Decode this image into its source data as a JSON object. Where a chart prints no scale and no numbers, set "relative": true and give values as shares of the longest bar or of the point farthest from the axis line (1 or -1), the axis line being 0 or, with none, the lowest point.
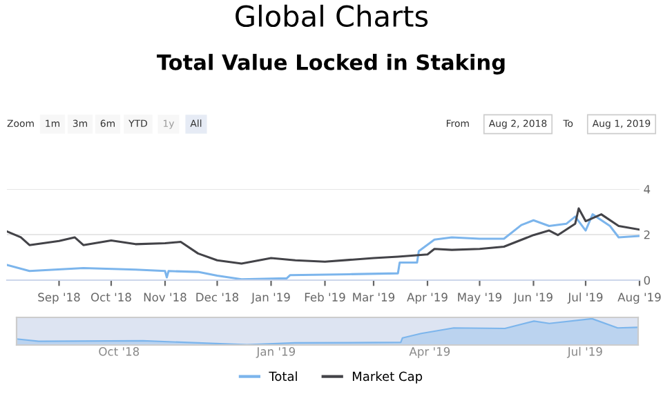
{
  "chart_data": [
    {
      "type": "line",
      "title": "Global Charts",
      "subtitle": "Total Value Locked in Staking",
      "annotations": [
        "Zoom",
        "1m",
        "3m",
        "6m",
        "YTD",
        "1y",
        "All",
        "From",
        "Aug 2, 2018",
        "To",
        "Aug 1, 2019"
      ],
      "series": [
        {
          "name": "Total",
          "color": "#7cb5ec",
          "x": [
            "2018-08-02",
            "2018-08-15",
            "2018-09-15",
            "2018-10-15",
            "2018-11-01",
            "2018-11-02",
            "2018-11-03",
            "2018-11-20",
            "2018-12-01",
            "2018-12-15",
            "2019-01-10",
            "2019-01-12",
            "2019-02-15",
            "2019-03-15",
            "2019-03-16",
            "2019-03-26",
            "2019-03-27",
            "2019-04-05",
            "2019-04-15",
            "2019-05-01",
            "2019-05-15",
            "2019-05-25",
            "2019-06-01",
            "2019-06-10",
            "2019-06-20",
            "2019-06-25",
            "2019-07-01",
            "2019-07-05",
            "2019-07-15",
            "2019-07-20",
            "2019-08-01"
          ],
          "values": [
            0.67,
            0.4,
            0.53,
            0.46,
            0.4,
            0.12,
            0.4,
            0.36,
            0.2,
            0.04,
            0.08,
            0.22,
            0.26,
            0.3,
            0.77,
            0.77,
            1.27,
            1.78,
            1.88,
            1.82,
            1.82,
            2.42,
            2.63,
            2.38,
            2.48,
            2.79,
            2.18,
            2.89,
            2.38,
            1.88,
            1.94
          ]
        },
        {
          "name": "Market Cap",
          "color": "#434348",
          "x": [
            "2018-08-02",
            "2018-08-10",
            "2018-08-15",
            "2018-09-01",
            "2018-09-10",
            "2018-09-15",
            "2018-10-01",
            "2018-10-15",
            "2018-11-01",
            "2018-11-10",
            "2018-11-20",
            "2018-12-01",
            "2018-12-15",
            "2019-01-01",
            "2019-01-15",
            "2019-02-01",
            "2019-02-15",
            "2019-03-01",
            "2019-03-15",
            "2019-04-01",
            "2019-04-05",
            "2019-04-15",
            "2019-05-01",
            "2019-05-15",
            "2019-06-01",
            "2019-06-10",
            "2019-06-15",
            "2019-06-25",
            "2019-06-27",
            "2019-07-01",
            "2019-07-10",
            "2019-07-20",
            "2019-08-01"
          ],
          "values": [
            2.14,
            1.88,
            1.54,
            1.72,
            1.88,
            1.54,
            1.74,
            1.58,
            1.62,
            1.68,
            1.17,
            0.87,
            0.73,
            0.97,
            0.87,
            0.81,
            0.89,
            0.97,
            1.03,
            1.13,
            1.37,
            1.33,
            1.37,
            1.47,
            1.98,
            2.18,
            1.98,
            2.48,
            3.15,
            2.59,
            2.89,
            2.38,
            2.22
          ]
        }
      ],
      "xlim": [
        "2018-08-02",
        "2019-08-01"
      ],
      "xticks": [
        {
          "value": "2018-09-01",
          "label": "Sep '18"
        },
        {
          "value": "2018-10-01",
          "label": "Oct '18"
        },
        {
          "value": "2018-11-01",
          "label": "Nov '18"
        },
        {
          "value": "2018-12-01",
          "label": "Dec '18"
        },
        {
          "value": "2019-01-01",
          "label": "Jan '19"
        },
        {
          "value": "2019-02-01",
          "label": "Feb '19"
        },
        {
          "value": "2019-03-01",
          "label": "Mar '19"
        },
        {
          "value": "2019-04-01",
          "label": "Apr '19"
        },
        {
          "value": "2019-05-01",
          "label": "May '19"
        },
        {
          "value": "2019-06-01",
          "label": "Jun '19"
        },
        {
          "value": "2019-07-01",
          "label": "Jul '19"
        },
        {
          "value": "2019-08-01",
          "label": "Aug '19"
        }
      ],
      "ylim": [
        0,
        4
      ],
      "yticks": [
        0,
        2,
        4
      ],
      "grid": "y",
      "legend": "bottom",
      "marker": "none",
      "line_style": "solid"
    },
    {
      "type": "area",
      "relative": true,
      "series": [
        {
          "color": "#7cb5ec",
          "x": [
            "2018-08-02",
            "2018-08-15",
            "2018-10-15",
            "2018-12-15",
            "2019-01-12",
            "2019-03-15",
            "2019-03-16",
            "2019-03-27",
            "2019-04-15",
            "2019-05-15",
            "2019-06-01",
            "2019-06-10",
            "2019-07-05",
            "2019-07-20",
            "2019-08-01"
          ],
          "values": [
            0.23,
            0.14,
            0.16,
            0.01,
            0.08,
            0.1,
            0.27,
            0.44,
            0.65,
            0.63,
            0.91,
            0.82,
            1.0,
            0.65,
            0.67
          ]
        }
      ],
      "xlim": [
        "2018-08-02",
        "2019-08-01"
      ],
      "xticks": [
        {
          "value": "2018-10-01",
          "label": "Oct '18"
        },
        {
          "value": "2019-01-01",
          "label": "Jan '19"
        },
        {
          "value": "2019-04-01",
          "label": "Apr '19"
        },
        {
          "value": "2019-07-01",
          "label": "Jul '19"
        }
      ],
      "tick_labels": "x"
    }
  ]
}
